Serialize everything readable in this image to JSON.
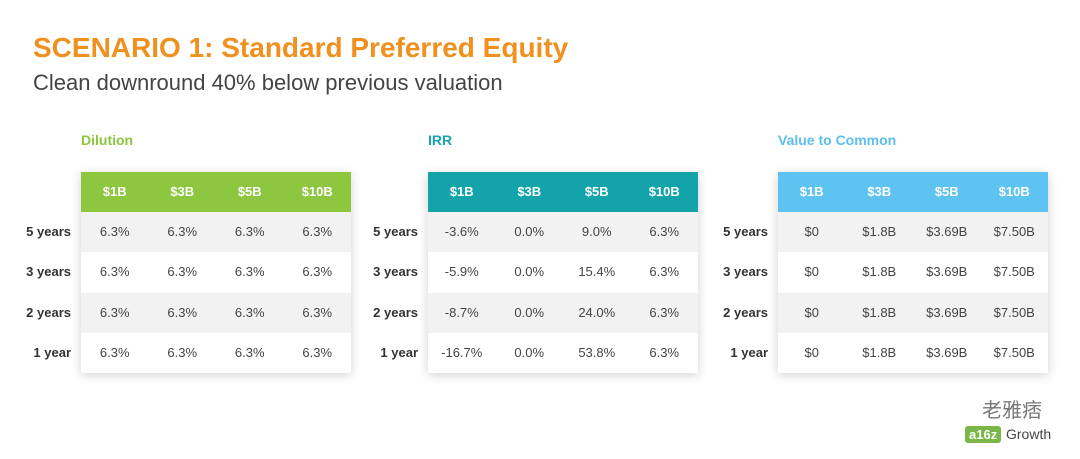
{
  "header": {
    "title": "SCENARIO 1: Standard Preferred Equity",
    "subtitle": "Clean downround 40% below previous valuation"
  },
  "tables": [
    {
      "title": "Dilution",
      "columns": [
        "$1B",
        "$3B",
        "$5B",
        "$10B"
      ],
      "row_labels": [
        "5 years",
        "3 years",
        "2 years",
        "1 year"
      ],
      "rows": [
        [
          "6.3%",
          "6.3%",
          "6.3%",
          "6.3%"
        ],
        [
          "6.3%",
          "6.3%",
          "6.3%",
          "6.3%"
        ],
        [
          "6.3%",
          "6.3%",
          "6.3%",
          "6.3%"
        ],
        [
          "6.3%",
          "6.3%",
          "6.3%",
          "6.3%"
        ]
      ]
    },
    {
      "title": "IRR",
      "columns": [
        "$1B",
        "$3B",
        "$5B",
        "$10B"
      ],
      "row_labels": [
        "5 years",
        "3 years",
        "2 years",
        "1 year"
      ],
      "rows": [
        [
          "-3.6%",
          "0.0%",
          "9.0%",
          "6.3%"
        ],
        [
          "-5.9%",
          "0.0%",
          "15.4%",
          "6.3%"
        ],
        [
          "-8.7%",
          "0.0%",
          "24.0%",
          "6.3%"
        ],
        [
          "-16.7%",
          "0.0%",
          "53.8%",
          "6.3%"
        ]
      ]
    },
    {
      "title": "Value to Common",
      "columns": [
        "$1B",
        "$3B",
        "$5B",
        "$10B"
      ],
      "row_labels": [
        "5 years",
        "3 years",
        "2 years",
        "1 year"
      ],
      "rows": [
        [
          "$0",
          "$1.8B",
          "$3.69B",
          "$7.50B"
        ],
        [
          "$0",
          "$1.8B",
          "$3.69B",
          "$7.50B"
        ],
        [
          "$0",
          "$1.8B",
          "$3.69B",
          "$7.50B"
        ],
        [
          "$0",
          "$1.8B",
          "$3.69B",
          "$7.50B"
        ]
      ]
    }
  ],
  "watermark": {
    "text": "老雅痞",
    "logo": "a16z",
    "logo_suffix": "Growth"
  }
}
